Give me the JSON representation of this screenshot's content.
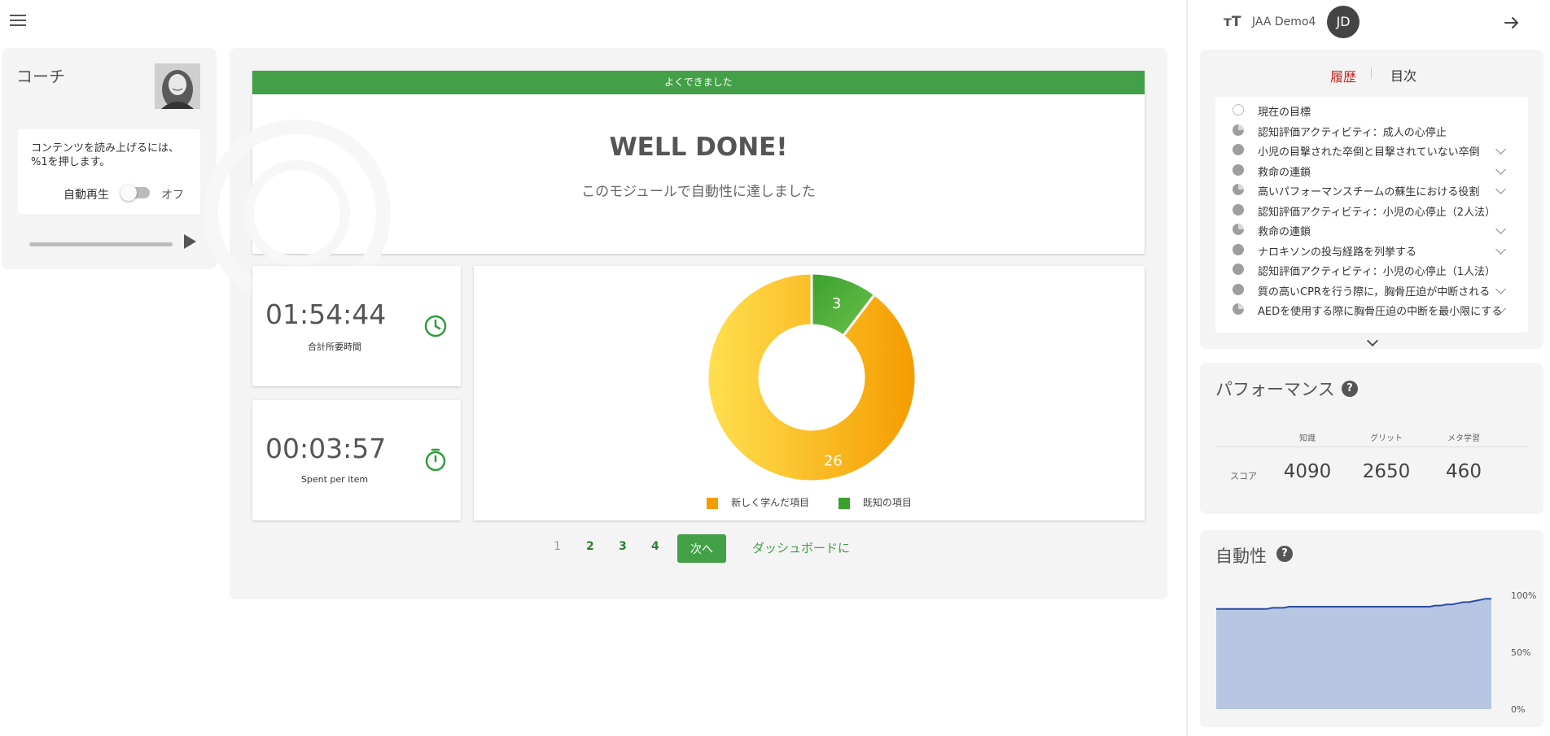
{
  "coach": {
    "title": "コーチ",
    "tts_text": "コンテンツを読み上げるには、%1を押します。",
    "autoplay_label": "自動再生",
    "toggle_state": "オフ"
  },
  "banner": {
    "bar_text": "よくできました",
    "heading": "WELL DONE!",
    "subtitle": "このモジュールで自動性に達しました"
  },
  "stats": {
    "total_time": "01:54:44",
    "total_time_label": "合計所要時間",
    "per_item": "00:03:57",
    "per_item_label": "Spent per item"
  },
  "chart_data": {
    "type": "pie",
    "donut": true,
    "categories": [
      "新しく学んだ項目",
      "既知の項目"
    ],
    "values": [
      26,
      3
    ],
    "colors": [
      "#f59c00",
      "#3aa12f"
    ],
    "legend_position": "bottom"
  },
  "pagination": {
    "pages": [
      "1",
      "2",
      "3",
      "4"
    ],
    "current": "1",
    "next_label": "次へ",
    "dashboard_label": "ダッシュボードに"
  },
  "header": {
    "user_name": "JAA Demo4",
    "avatar_initials": "JD"
  },
  "toc": {
    "tab_history": "履歴",
    "tab_toc": "目次",
    "items": [
      {
        "label": "現在の目標",
        "status": "empty",
        "expandable": false
      },
      {
        "label": "認知評価アクティビティ：成人の心停止",
        "status": "partial",
        "expandable": false
      },
      {
        "label": "小児の目撃された卒倒と目撃されていない卒倒",
        "status": "full",
        "expandable": true
      },
      {
        "label": "救命の連鎖",
        "status": "full",
        "expandable": true
      },
      {
        "label": "高いパフォーマンスチームの蘇生における役割",
        "status": "partial",
        "expandable": true
      },
      {
        "label": "認知評価アクティビティ：小児の心停止（2人法）",
        "status": "full",
        "expandable": false
      },
      {
        "label": "救命の連鎖",
        "status": "partial",
        "expandable": true
      },
      {
        "label": "ナロキソンの投与経路を列挙する",
        "status": "full",
        "expandable": true
      },
      {
        "label": "認知評価アクティビティ：小児の心停止（1人法）",
        "status": "full",
        "expandable": false
      },
      {
        "label": "質の高いCPRを行う際に，胸骨圧迫が中断される",
        "status": "full",
        "expandable": true
      },
      {
        "label": "AEDを使用する際に胸骨圧迫の中断を最小限にする",
        "status": "partial",
        "expandable": true
      }
    ]
  },
  "performance": {
    "title": "パフォーマンス",
    "columns": [
      "知識",
      "グリット",
      "メタ学習"
    ],
    "row_label": "スコア",
    "values": [
      "4090",
      "2650",
      "460"
    ]
  },
  "automaticity": {
    "title": "自動性",
    "y_ticks": [
      "100%",
      "50%",
      "0%"
    ],
    "series_values": [
      88,
      88,
      88,
      88,
      88,
      88,
      88,
      88,
      88,
      88,
      89,
      89,
      89,
      90,
      90,
      90,
      90,
      90,
      90,
      90,
      90,
      90,
      90,
      90,
      90,
      90,
      90,
      90,
      90,
      90,
      90,
      90,
      90,
      90,
      90,
      90,
      90,
      90,
      90,
      91,
      91,
      92,
      92,
      93,
      94,
      94,
      95,
      96,
      97,
      97
    ],
    "fill_color": "#b7c6e3",
    "line_color": "#2c4f9f"
  }
}
